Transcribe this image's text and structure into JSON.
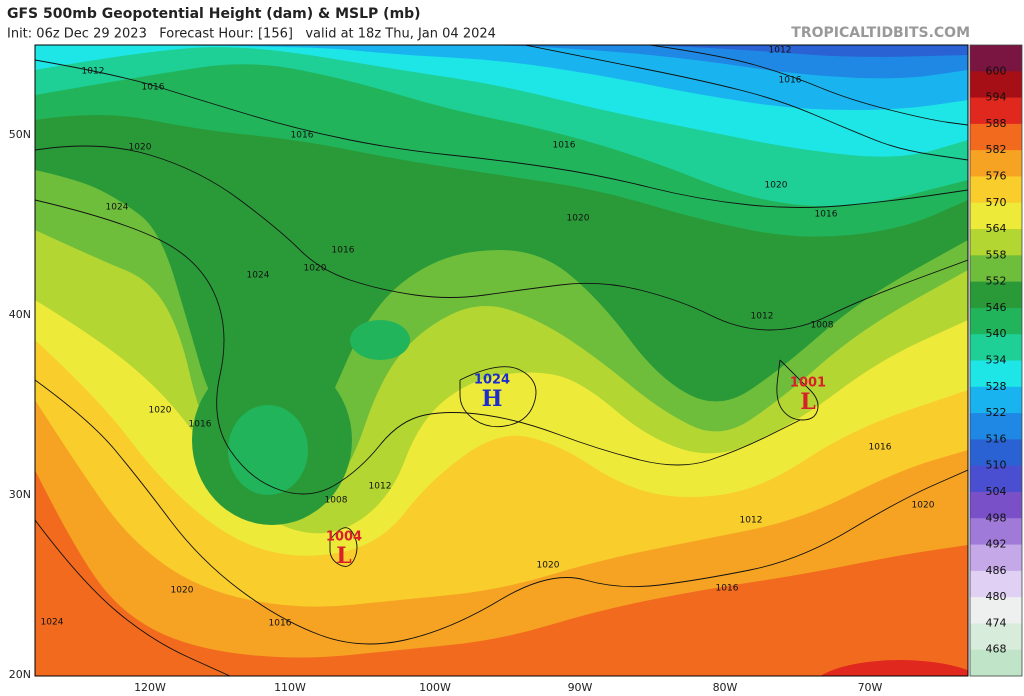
{
  "header": {
    "title": "GFS 500mb Geopotential Height (dam) & MSLP (mb)",
    "subtitle": "Init: 06z Dec 29 2023   Forecast Hour: [156]   valid at 18z Thu, Jan 04 2024",
    "site": "TROPICALTIDBITS.COM"
  },
  "colorbar": {
    "levels": [
      600,
      594,
      588,
      582,
      576,
      570,
      564,
      558,
      552,
      546,
      540,
      534,
      528,
      522,
      516,
      510,
      504,
      498,
      492,
      486,
      480,
      474,
      468
    ],
    "colors": [
      "#7a1440",
      "#a50f15",
      "#e0281e",
      "#f26a1e",
      "#f6a324",
      "#f9cd2c",
      "#eeea3a",
      "#b4d632",
      "#6ebe3c",
      "#2a9a38",
      "#22b45a",
      "#1ecf96",
      "#1ee6e6",
      "#19b4f0",
      "#1f88e4",
      "#2a62d4",
      "#4a4ed0",
      "#7a50c8",
      "#a07ad8",
      "#c4a8e8",
      "#e0d0f4",
      "#eef0f0",
      "#d8ecdc",
      "#c0e4c8"
    ]
  },
  "axes": {
    "lat": [
      "50N",
      "40N",
      "30N",
      "20N"
    ],
    "lon": [
      "120W",
      "110W",
      "100W",
      "90W",
      "80W",
      "70W"
    ]
  },
  "isobars": [
    1012,
    1016,
    1020,
    1024,
    1024,
    1016,
    1020,
    1016,
    1020,
    1016,
    1008,
    1012,
    1020,
    1024,
    1020,
    1016,
    1016,
    1020,
    1012,
    1016,
    1020,
    1016,
    1012,
    1008,
    1016,
    1020,
    1012,
    1016
  ],
  "pressure_centers": [
    {
      "label": "H",
      "value": 1024
    },
    {
      "label": "L",
      "value": 1001
    },
    {
      "label": "L",
      "value": 1004
    }
  ]
}
